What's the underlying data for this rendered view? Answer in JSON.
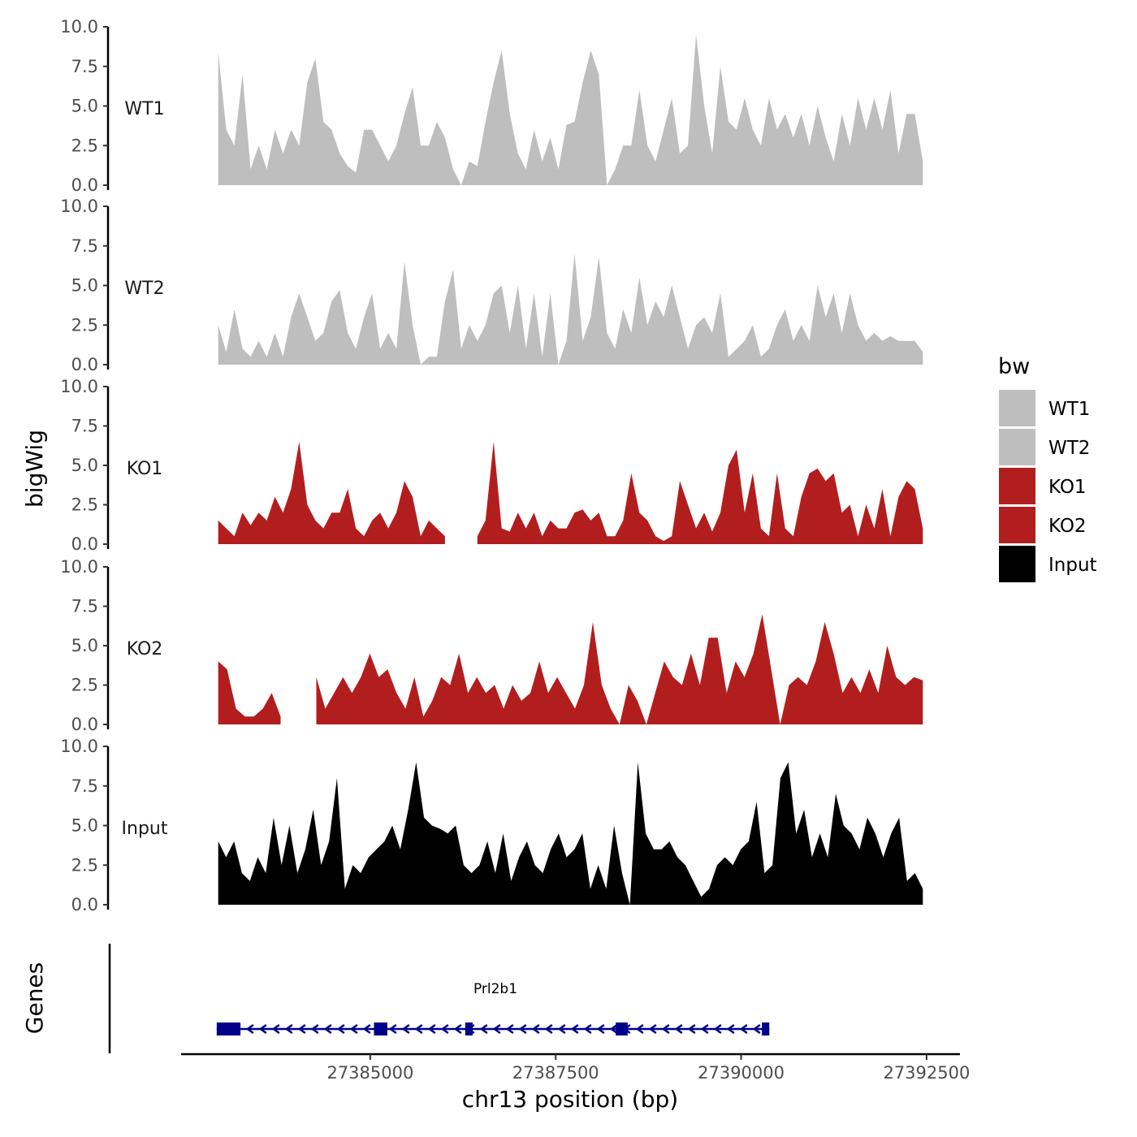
{
  "chart_data": {
    "type": "area",
    "title": "",
    "xlabel": "chr13 position (bp)",
    "ylabel": "bigWig",
    "genes_label": "Genes",
    "xlim": [
      27382450,
      27392950
    ],
    "x_ticks": [
      {
        "value": 27385000,
        "label": "27385000"
      },
      {
        "value": 27387500,
        "label": "27387500"
      },
      {
        "value": 27390000,
        "label": "27390000"
      },
      {
        "value": 27392500,
        "label": "27392500"
      }
    ],
    "ylim": [
      0,
      10
    ],
    "y_ticks": [
      "0.0",
      "2.5",
      "5.0",
      "7.5",
      "10.0"
    ],
    "legend": {
      "title": "bw",
      "position": "right",
      "entries": [
        {
          "label": "WT1",
          "color": "#bebebe"
        },
        {
          "label": "WT2",
          "color": "#bebebe"
        },
        {
          "label": "KO1",
          "color": "#b21e1e"
        },
        {
          "label": "KO2",
          "color": "#b21e1e"
        },
        {
          "label": "Input",
          "color": "#000000"
        }
      ]
    },
    "series": [
      {
        "name": "WT1",
        "color": "#bebebe",
        "start": 27382950,
        "end": 27392450,
        "values": [
          8.4,
          3.5,
          2.5,
          7.0,
          1.0,
          2.5,
          1.0,
          3.5,
          2.0,
          3.5,
          2.5,
          6.5,
          8.0,
          4.0,
          3.5,
          2.0,
          1.2,
          0.8,
          3.5,
          3.5,
          2.5,
          1.5,
          2.5,
          4.5,
          6.2,
          2.5,
          2.5,
          4.0,
          3.0,
          1.0,
          0.0,
          1.5,
          1.2,
          4.0,
          6.5,
          8.5,
          4.5,
          2.0,
          1.0,
          3.5,
          1.5,
          3.0,
          1.0,
          3.8,
          4.0,
          6.5,
          8.5,
          7.0,
          0.0,
          1.0,
          2.5,
          2.5,
          6.0,
          2.5,
          1.5,
          3.5,
          5.5,
          2.0,
          2.5,
          9.5,
          5.0,
          2.0,
          7.5,
          4.0,
          3.5,
          5.5,
          3.5,
          2.5,
          5.5,
          3.5,
          4.5,
          3.0,
          4.5,
          2.5,
          5.0,
          3.0,
          1.5,
          4.5,
          2.5,
          5.5,
          3.5,
          5.5,
          3.5,
          6.0,
          2.0,
          4.5,
          4.5,
          1.5
        ]
      },
      {
        "name": "WT2",
        "color": "#bebebe",
        "start": 27382950,
        "end": 27392450,
        "values": [
          2.5,
          0.8,
          3.5,
          1.0,
          0.5,
          1.5,
          0.5,
          2.0,
          0.5,
          3.0,
          4.5,
          3.0,
          1.5,
          2.0,
          4.0,
          4.7,
          2.0,
          1.0,
          3.0,
          4.5,
          1.0,
          2.0,
          1.0,
          6.5,
          2.5,
          0.0,
          0.5,
          0.5,
          4.0,
          6.0,
          1.0,
          2.5,
          1.5,
          2.5,
          4.5,
          5.0,
          2.0,
          5.0,
          1.0,
          4.5,
          0.5,
          4.5,
          0.0,
          1.5,
          7.0,
          1.5,
          3.0,
          6.8,
          2.0,
          1.0,
          3.5,
          2.0,
          5.5,
          2.5,
          4.0,
          3.0,
          5.0,
          3.0,
          1.0,
          2.5,
          3.0,
          2.0,
          4.5,
          0.5,
          1.0,
          1.5,
          2.5,
          0.5,
          1.0,
          2.5,
          3.5,
          1.5,
          2.5,
          1.5,
          5.0,
          3.0,
          4.5,
          2.0,
          4.5,
          2.5,
          1.5,
          2.0,
          1.5,
          1.8,
          1.5,
          1.5,
          1.5,
          0.8
        ]
      },
      {
        "name": "KO1",
        "color": "#b21e1e",
        "start": 27382950,
        "end": 27392450,
        "values": [
          1.5,
          1.0,
          0.5,
          2.0,
          1.2,
          2.0,
          1.5,
          3.0,
          2.0,
          3.5,
          6.5,
          2.5,
          1.5,
          1.0,
          2.0,
          2.0,
          3.5,
          1.0,
          0.5,
          1.5,
          2.0,
          1.0,
          2.0,
          4.0,
          3.0,
          0.5,
          1.5,
          1.0,
          0.5,
          null,
          null,
          null,
          0.5,
          1.5,
          6.5,
          1.0,
          0.8,
          2.0,
          1.0,
          2.0,
          0.5,
          1.5,
          1.0,
          1.0,
          2.0,
          2.2,
          1.5,
          2.0,
          0.5,
          0.5,
          1.5,
          4.5,
          2.0,
          1.5,
          0.5,
          0.2,
          0.5,
          4.0,
          2.5,
          1.0,
          2.0,
          0.8,
          2.0,
          5.0,
          6.0,
          2.0,
          4.5,
          1.0,
          0.5,
          4.5,
          1.0,
          0.5,
          3.0,
          4.5,
          4.8,
          4.0,
          4.5,
          2.0,
          2.5,
          0.5,
          2.5,
          1.0,
          3.5,
          0.5,
          3.0,
          4.0,
          3.5,
          1.0
        ]
      },
      {
        "name": "KO2",
        "color": "#b21e1e",
        "start": 27382950,
        "end": 27392450,
        "values": [
          4.0,
          3.5,
          1.0,
          0.5,
          0.5,
          1.0,
          2.0,
          0.5,
          null,
          null,
          null,
          3.0,
          1.0,
          2.0,
          3.0,
          2.0,
          3.0,
          4.5,
          3.0,
          3.5,
          2.0,
          1.0,
          3.0,
          0.5,
          1.5,
          3.0,
          2.5,
          4.5,
          2.0,
          3.0,
          2.0,
          2.5,
          1.0,
          2.5,
          1.5,
          2.0,
          4.0,
          2.0,
          3.0,
          2.0,
          1.0,
          2.5,
          6.5,
          2.5,
          1.0,
          0.0,
          2.5,
          1.5,
          0.0,
          2.0,
          4.0,
          3.0,
          2.5,
          4.5,
          2.5,
          5.5,
          5.5,
          2.0,
          4.0,
          3.0,
          4.5,
          7.0,
          3.5,
          0.0,
          2.5,
          3.0,
          2.5,
          4.0,
          6.5,
          4.5,
          2.0,
          3.0,
          2.0,
          3.5,
          2.0,
          5.0,
          3.0,
          2.5,
          3.0,
          2.8
        ]
      },
      {
        "name": "Input",
        "color": "#000000",
        "start": 27382950,
        "end": 27392450,
        "values": [
          4.0,
          3.0,
          4.0,
          2.0,
          1.5,
          3.0,
          2.0,
          5.5,
          2.5,
          5.0,
          2.0,
          3.5,
          6.0,
          2.5,
          4.0,
          8.0,
          1.0,
          2.5,
          2.0,
          3.0,
          3.5,
          4.0,
          5.0,
          3.5,
          6.0,
          9.0,
          5.5,
          5.0,
          4.8,
          4.5,
          5.0,
          2.5,
          2.0,
          2.5,
          4.0,
          2.0,
          4.5,
          1.5,
          3.0,
          4.0,
          2.5,
          2.0,
          3.5,
          4.5,
          3.0,
          3.5,
          4.5,
          1.0,
          2.5,
          1.0,
          5.0,
          2.0,
          0.0,
          9.0,
          4.5,
          3.5,
          3.5,
          4.0,
          3.0,
          2.5,
          1.5,
          0.5,
          1.0,
          2.5,
          3.0,
          2.5,
          3.5,
          4.0,
          6.5,
          2.0,
          2.5,
          8.0,
          9.0,
          4.5,
          6.0,
          3.0,
          4.5,
          3.0,
          7.0,
          5.0,
          4.5,
          3.5,
          5.5,
          4.5,
          3.0,
          4.5,
          5.5,
          1.5,
          2.0,
          1.0
        ]
      }
    ],
    "gene": {
      "name": "Prl2b1",
      "color": "#00008b",
      "strand": "-",
      "start": 27382930,
      "end": 27390380,
      "exons": [
        [
          27382930,
          27383250
        ],
        [
          27385050,
          27385230
        ],
        [
          27386280,
          27386380
        ],
        [
          27388310,
          27388470
        ],
        [
          27390280,
          27390380
        ]
      ]
    }
  }
}
